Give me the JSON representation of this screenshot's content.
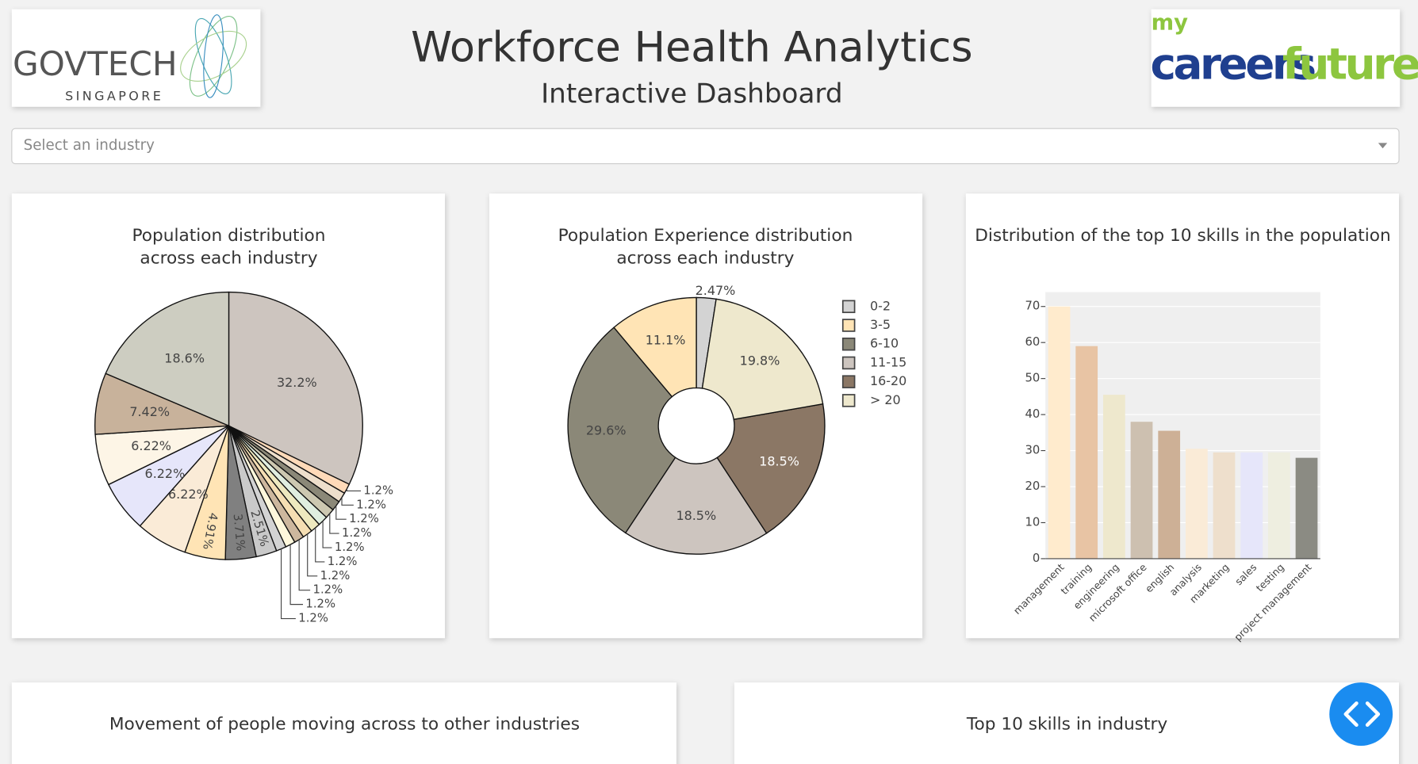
{
  "header": {
    "title": "Workforce Health Analytics",
    "subtitle": "Interactive Dashboard"
  },
  "logos": {
    "left": {
      "name": "GOVTECH",
      "sub": "SINGAPORE"
    },
    "right": {
      "prefix": "my",
      "first": "careers",
      "second": "future.sg"
    }
  },
  "dropdown": {
    "placeholder": "Select an industry"
  },
  "chart_data": [
    {
      "type": "pie",
      "title": [
        "Population distribution",
        "across each industry"
      ],
      "values": [
        32.2,
        1.2,
        1.2,
        1.2,
        1.2,
        1.2,
        1.2,
        1.2,
        1.2,
        1.2,
        1.2,
        2.51,
        3.71,
        4.91,
        6.22,
        6.22,
        6.22,
        7.42,
        18.6
      ],
      "value_labels": [
        "32.2%",
        "1.2%",
        "1.2%",
        "1.2%",
        "1.2%",
        "1.2%",
        "1.2%",
        "1.2%",
        "1.2%",
        "1.2%",
        "1.2%",
        "2.51%",
        "3.71%",
        "4.91%",
        "6.22%",
        "6.22%",
        "6.22%",
        "7.42%",
        "18.6%"
      ],
      "colors": [
        "#cdc5bf",
        "#ffdab9",
        "#eedfcc",
        "#8b8878",
        "#cdc8b1",
        "#e0eee0",
        "#eee9bf",
        "#f5deb3",
        "#cdb79e",
        "#fff8dc",
        "#d3d3d3",
        "#c9c9c9",
        "#808080",
        "#ffe4b5",
        "#faebd7",
        "#e6e6fa",
        "#fdf5e6",
        "#c8b29b",
        "#cdcdc1"
      ]
    },
    {
      "type": "donut",
      "title": [
        "Population Experience distribution",
        "across each industry"
      ],
      "categories": [
        "0-2",
        "3-5",
        "6-10",
        "11-15",
        "16-20",
        "> 20"
      ],
      "values": [
        2.47,
        11.1,
        29.6,
        18.5,
        18.5,
        19.8
      ],
      "value_labels": [
        "2.47%",
        "11.1%",
        "29.6%",
        "18.5%",
        "18.5%",
        "19.8%"
      ],
      "colors": [
        "#d3d3d3",
        "#ffe4b5",
        "#8b8878",
        "#cdc5bf",
        "#8b7765",
        "#eee8cd"
      ],
      "direction": "counterclockwise",
      "legend": "right"
    },
    {
      "type": "bar",
      "title": [
        "Distribution of the top 10 skills in the population"
      ],
      "categories": [
        "management",
        "training",
        "engineering",
        "microsoft office",
        "english",
        "analysis",
        "marketing",
        "sales",
        "testing",
        "project management"
      ],
      "values": [
        70,
        59,
        45.5,
        38,
        35.5,
        30.5,
        29.5,
        29.5,
        29.5,
        28
      ],
      "colors": [
        "#ffebcd",
        "#e8c4a4",
        "#eee8cd",
        "#cdc0b0",
        "#cdb096",
        "#faebd7",
        "#eedfcc",
        "#e6e6fa",
        "#eeeee0",
        "#8b8b83"
      ],
      "ylim": [
        0,
        74
      ],
      "yticks": [
        0,
        10,
        20,
        30,
        40,
        50,
        60,
        70
      ],
      "grid": true,
      "plot_background": "#efefef"
    }
  ],
  "panels": [
    {
      "title": "Movement of people moving across to other industries"
    },
    {
      "title": "Top 10 skills in industry"
    }
  ]
}
